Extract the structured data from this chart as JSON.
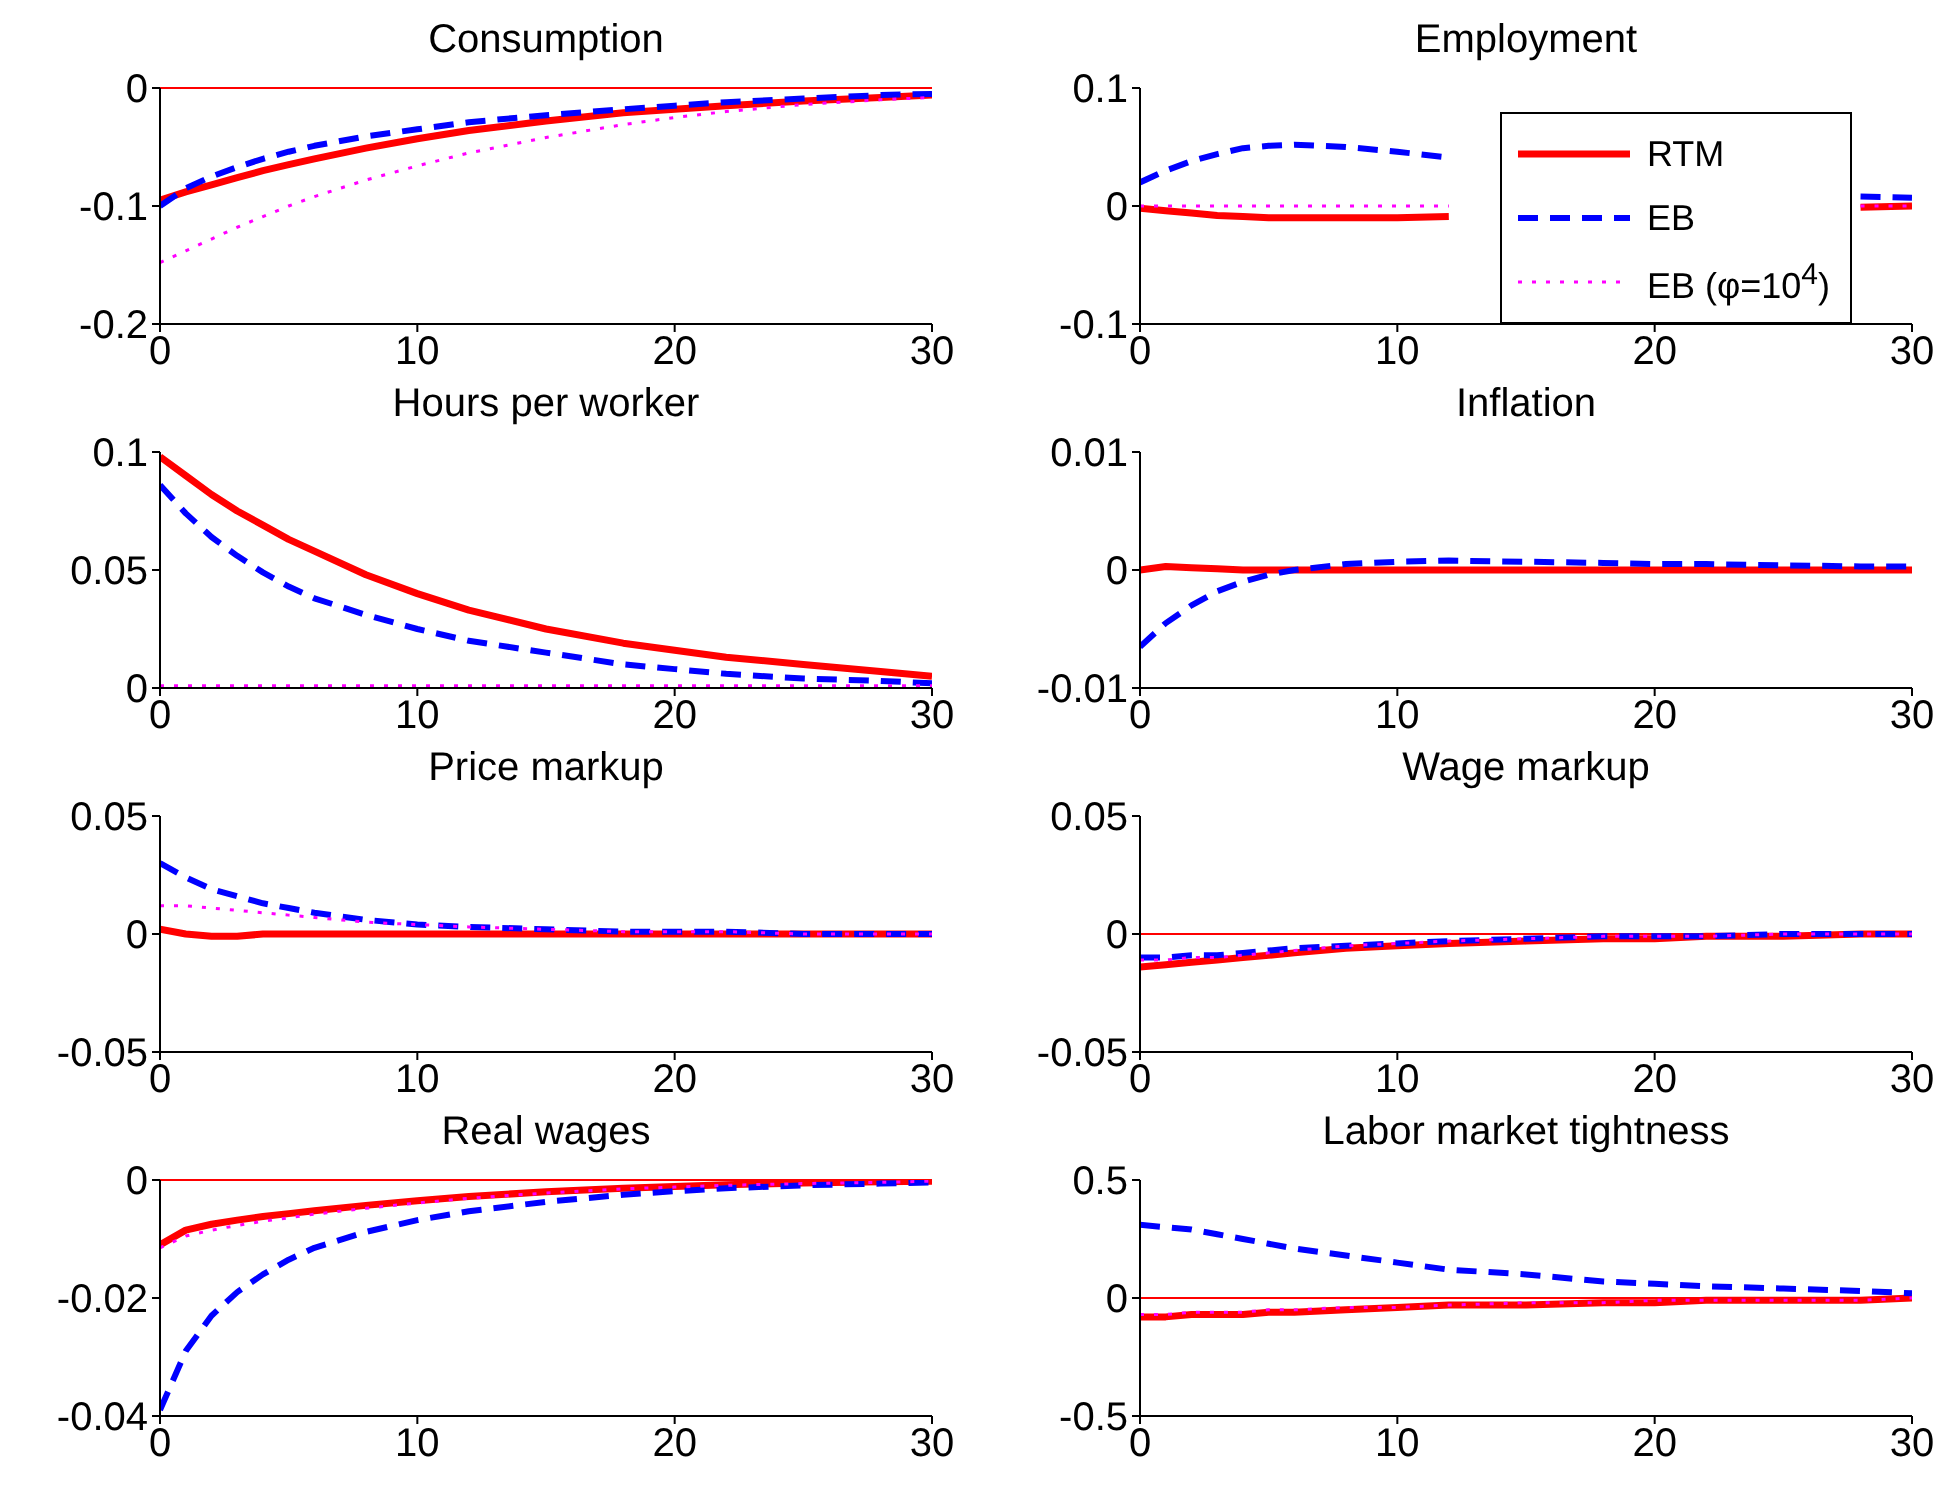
{
  "chart_data": [
    {
      "type": "line",
      "title": "Consumption",
      "x": [
        0,
        1,
        2,
        3,
        4,
        5,
        6,
        8,
        10,
        12,
        15,
        18,
        20,
        22,
        25,
        28,
        30
      ],
      "xlim": [
        0,
        30
      ],
      "xticks": [
        0,
        10,
        20,
        30
      ],
      "ylim": [
        -0.2,
        0
      ],
      "yticks": [
        -0.2,
        -0.1,
        0
      ],
      "grid": false,
      "ref_lines": [
        {
          "axis": "y",
          "value": 0,
          "color": "#ff0000"
        }
      ],
      "series": [
        {
          "color": "#ff0000",
          "line_style": "solid",
          "values": [
            -0.095,
            -0.088,
            -0.082,
            -0.076,
            -0.07,
            -0.065,
            -0.06,
            -0.051,
            -0.043,
            -0.036,
            -0.028,
            -0.021,
            -0.018,
            -0.015,
            -0.011,
            -0.008,
            -0.006
          ]
        },
        {
          "color": "#0000ff",
          "line_style": "dashed",
          "values": [
            -0.1,
            -0.085,
            -0.075,
            -0.067,
            -0.06,
            -0.054,
            -0.049,
            -0.041,
            -0.035,
            -0.029,
            -0.023,
            -0.018,
            -0.015,
            -0.012,
            -0.009,
            -0.006,
            -0.005
          ]
        },
        {
          "color": "#ff00ff",
          "line_style": "dotted",
          "values": [
            -0.148,
            -0.138,
            -0.128,
            -0.118,
            -0.109,
            -0.1,
            -0.092,
            -0.078,
            -0.066,
            -0.055,
            -0.042,
            -0.031,
            -0.025,
            -0.02,
            -0.014,
            -0.01,
            -0.008
          ]
        }
      ]
    },
    {
      "type": "line",
      "title": "Employment",
      "x": [
        0,
        1,
        2,
        3,
        4,
        5,
        6,
        8,
        10,
        12,
        15,
        18,
        20,
        22,
        25,
        28,
        30
      ],
      "xlim": [
        0,
        30
      ],
      "xticks": [
        0,
        10,
        20,
        30
      ],
      "ylim": [
        -0.1,
        0.1
      ],
      "yticks": [
        -0.1,
        0,
        0.1
      ],
      "grid": false,
      "legend": "bottom right",
      "series": [
        {
          "name": "RTM",
          "color": "#ff0000",
          "line_style": "solid",
          "values": [
            -0.002,
            -0.004,
            -0.006,
            -0.008,
            -0.009,
            -0.01,
            -0.01,
            -0.01,
            -0.01,
            -0.009,
            null,
            null,
            null,
            null,
            null,
            -0.001,
            0
          ]
        },
        {
          "name": "EB",
          "color": "#0000ff",
          "line_style": "dashed",
          "values": [
            0.02,
            0.03,
            0.038,
            0.044,
            0.049,
            0.051,
            0.052,
            0.05,
            0.046,
            0.041,
            null,
            null,
            null,
            null,
            null,
            0.008,
            0.007
          ]
        },
        {
          "name": "EB (φ=10$^{4}$)",
          "color": "#ff00ff",
          "line_style": "dotted",
          "values": [
            0,
            0,
            0,
            0,
            0,
            0,
            0,
            0,
            0,
            0,
            null,
            null,
            null,
            null,
            null,
            0,
            0
          ]
        }
      ]
    },
    {
      "type": "line",
      "title": "Hours per worker",
      "x": [
        0,
        1,
        2,
        3,
        4,
        5,
        6,
        8,
        10,
        12,
        15,
        18,
        20,
        22,
        25,
        28,
        30
      ],
      "xlim": [
        0,
        30
      ],
      "xticks": [
        0,
        10,
        20,
        30
      ],
      "ylim": [
        0,
        0.1
      ],
      "yticks": [
        0,
        0.05,
        0.1
      ],
      "grid": false,
      "series": [
        {
          "color": "#ff0000",
          "line_style": "solid",
          "values": [
            0.098,
            0.09,
            0.082,
            0.075,
            0.069,
            0.063,
            0.058,
            0.048,
            0.04,
            0.033,
            0.025,
            0.019,
            0.016,
            0.013,
            0.01,
            0.007,
            0.005
          ]
        },
        {
          "color": "#0000ff",
          "line_style": "dashed",
          "values": [
            0.086,
            0.074,
            0.064,
            0.056,
            0.049,
            0.043,
            0.038,
            0.031,
            0.025,
            0.02,
            0.015,
            0.01,
            0.008,
            0.006,
            0.004,
            0.003,
            0.002
          ]
        },
        {
          "color": "#ff00ff",
          "line_style": "dotted",
          "values": [
            0.001,
            0.001,
            0.001,
            0.001,
            0.001,
            0.001,
            0.001,
            0.001,
            0.001,
            0.001,
            0.001,
            0.001,
            0.001,
            0.001,
            0.001,
            0.001,
            0.001
          ]
        }
      ]
    },
    {
      "type": "line",
      "title": "Inflation",
      "x": [
        0,
        1,
        2,
        3,
        4,
        5,
        6,
        8,
        10,
        12,
        15,
        18,
        20,
        22,
        25,
        28,
        30
      ],
      "xlim": [
        0,
        30
      ],
      "xticks": [
        0,
        10,
        20,
        30
      ],
      "ylim": [
        -0.01,
        0.01
      ],
      "yticks": [
        -0.01,
        0,
        0.01
      ],
      "grid": false,
      "series": [
        {
          "color": "#ff0000",
          "line_style": "solid",
          "values": [
            0,
            0.0003,
            0.0002,
            0.0001,
            0,
            0,
            0,
            0,
            0,
            0,
            0,
            0,
            0,
            0,
            0,
            0,
            0
          ]
        },
        {
          "color": "#0000ff",
          "line_style": "dashed",
          "values": [
            -0.0065,
            -0.0045,
            -0.003,
            -0.0018,
            -0.001,
            -0.0004,
            0,
            0.0005,
            0.0007,
            0.0008,
            0.0007,
            0.0006,
            0.0005,
            0.0005,
            0.0004,
            0.0003,
            0.0003
          ]
        }
      ]
    },
    {
      "type": "line",
      "title": "Price markup",
      "x": [
        0,
        1,
        2,
        3,
        4,
        5,
        6,
        8,
        10,
        12,
        15,
        18,
        20,
        22,
        25,
        28,
        30
      ],
      "xlim": [
        0,
        30
      ],
      "xticks": [
        0,
        10,
        20,
        30
      ],
      "ylim": [
        -0.05,
        0.05
      ],
      "yticks": [
        -0.05,
        0,
        0.05
      ],
      "grid": false,
      "series": [
        {
          "color": "#ff0000",
          "line_style": "solid",
          "values": [
            0.002,
            0,
            -0.001,
            -0.001,
            0,
            0,
            0,
            0,
            0,
            0,
            0,
            0,
            0,
            0,
            0,
            0,
            0
          ]
        },
        {
          "color": "#0000ff",
          "line_style": "dashed",
          "values": [
            0.03,
            0.024,
            0.019,
            0.016,
            0.013,
            0.011,
            0.009,
            0.006,
            0.004,
            0.003,
            0.002,
            0.001,
            0.001,
            0.001,
            0,
            0,
            0
          ]
        },
        {
          "color": "#ff00ff",
          "line_style": "dotted",
          "values": [
            0.012,
            0.012,
            0.011,
            0.01,
            0.009,
            0.008,
            0.007,
            0.005,
            0.004,
            0.003,
            0.002,
            0.001,
            0.001,
            0.001,
            0,
            0,
            0
          ]
        }
      ]
    },
    {
      "type": "line",
      "title": "Wage markup",
      "x": [
        0,
        1,
        2,
        3,
        4,
        5,
        6,
        8,
        10,
        12,
        15,
        18,
        20,
        22,
        25,
        28,
        30
      ],
      "xlim": [
        0,
        30
      ],
      "xticks": [
        0,
        10,
        20,
        30
      ],
      "ylim": [
        -0.05,
        0.05
      ],
      "yticks": [
        -0.05,
        0,
        0.05
      ],
      "grid": false,
      "ref_lines": [
        {
          "axis": "y",
          "value": 0,
          "color": "#ff0000"
        }
      ],
      "series": [
        {
          "color": "#ff0000",
          "line_style": "solid",
          "values": [
            -0.014,
            -0.013,
            -0.012,
            -0.011,
            -0.01,
            -0.009,
            -0.008,
            -0.006,
            -0.005,
            -0.004,
            -0.003,
            -0.002,
            -0.002,
            -0.001,
            -0.001,
            0,
            0
          ]
        },
        {
          "color": "#0000ff",
          "line_style": "dashed",
          "values": [
            -0.01,
            -0.01,
            -0.009,
            -0.009,
            -0.008,
            -0.007,
            -0.006,
            -0.005,
            -0.004,
            -0.003,
            -0.002,
            -0.001,
            -0.001,
            -0.001,
            0,
            0,
            0
          ]
        },
        {
          "color": "#ff00ff",
          "line_style": "dotted",
          "values": [
            -0.011,
            -0.011,
            -0.01,
            -0.01,
            -0.009,
            -0.008,
            -0.007,
            -0.005,
            -0.004,
            -0.003,
            -0.002,
            -0.001,
            -0.001,
            -0.001,
            0,
            0,
            0
          ]
        }
      ]
    },
    {
      "type": "line",
      "title": "Real wages",
      "x": [
        0,
        1,
        2,
        3,
        4,
        5,
        6,
        8,
        10,
        12,
        15,
        18,
        20,
        22,
        25,
        28,
        30
      ],
      "xlim": [
        0,
        30
      ],
      "xticks": [
        0,
        10,
        20,
        30
      ],
      "ylim": [
        -0.04,
        0
      ],
      "yticks": [
        -0.04,
        -0.02,
        0
      ],
      "grid": false,
      "ref_lines": [
        {
          "axis": "y",
          "value": 0,
          "color": "#ff0000"
        }
      ],
      "series": [
        {
          "color": "#ff0000",
          "line_style": "solid",
          "values": [
            -0.011,
            -0.0085,
            -0.0075,
            -0.0068,
            -0.0062,
            -0.0057,
            -0.0052,
            -0.0043,
            -0.0035,
            -0.0028,
            -0.002,
            -0.0014,
            -0.0011,
            -0.0008,
            -0.0005,
            -0.0003,
            -0.0002
          ]
        },
        {
          "color": "#0000ff",
          "line_style": "dashed",
          "values": [
            -0.039,
            -0.029,
            -0.023,
            -0.019,
            -0.016,
            -0.0135,
            -0.0115,
            -0.0088,
            -0.0068,
            -0.0053,
            -0.0037,
            -0.0025,
            -0.0019,
            -0.0014,
            -0.0009,
            -0.0006,
            -0.0004
          ]
        },
        {
          "color": "#ff00ff",
          "line_style": "dotted",
          "values": [
            -0.0115,
            -0.0095,
            -0.0085,
            -0.0077,
            -0.007,
            -0.0064,
            -0.0058,
            -0.0048,
            -0.0039,
            -0.0031,
            -0.0022,
            -0.0015,
            -0.0012,
            -0.0009,
            -0.0006,
            -0.0004,
            -0.0002
          ]
        }
      ]
    },
    {
      "type": "line",
      "title": "Labor market tightness",
      "x": [
        0,
        1,
        2,
        3,
        4,
        5,
        6,
        8,
        10,
        12,
        15,
        18,
        20,
        22,
        25,
        28,
        30
      ],
      "xlim": [
        0,
        30
      ],
      "xticks": [
        0,
        10,
        20,
        30
      ],
      "ylim": [
        -0.5,
        0.5
      ],
      "yticks": [
        -0.5,
        0,
        0.5
      ],
      "grid": false,
      "ref_lines": [
        {
          "axis": "y",
          "value": 0,
          "color": "#ff0000"
        }
      ],
      "series": [
        {
          "color": "#ff0000",
          "line_style": "solid",
          "values": [
            -0.08,
            -0.08,
            -0.07,
            -0.07,
            -0.07,
            -0.06,
            -0.06,
            -0.05,
            -0.04,
            -0.03,
            -0.03,
            -0.02,
            -0.02,
            -0.01,
            -0.01,
            -0.01,
            0
          ]
        },
        {
          "color": "#0000ff",
          "line_style": "dashed",
          "values": [
            0.31,
            0.3,
            0.29,
            0.27,
            0.25,
            0.23,
            0.21,
            0.18,
            0.15,
            0.12,
            0.1,
            0.07,
            0.06,
            0.05,
            0.04,
            0.03,
            0.02
          ]
        },
        {
          "color": "#ff00ff",
          "line_style": "dotted",
          "values": [
            -0.07,
            -0.07,
            -0.06,
            -0.06,
            -0.06,
            -0.05,
            -0.05,
            -0.04,
            -0.04,
            -0.03,
            -0.02,
            -0.02,
            -0.01,
            -0.01,
            -0.01,
            -0.01,
            0
          ]
        }
      ]
    }
  ]
}
